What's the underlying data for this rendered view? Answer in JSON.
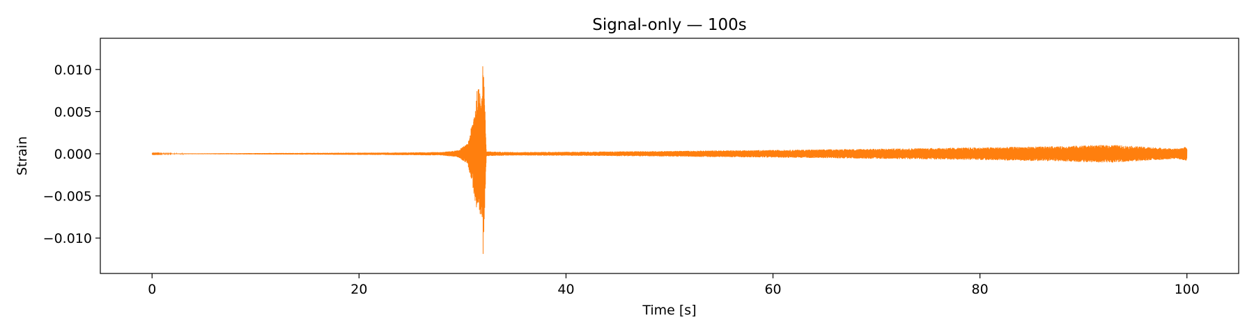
{
  "chart_data": {
    "type": "line",
    "title": "Signal-only — 100s",
    "xlabel": "Time [s]",
    "ylabel": "Strain",
    "xlim": [
      -5,
      105
    ],
    "ylim": [
      -0.0142,
      0.0137
    ],
    "x_ticks": [
      0,
      20,
      40,
      60,
      80,
      100
    ],
    "x_tick_labels": [
      "0",
      "20",
      "40",
      "60",
      "80",
      "100"
    ],
    "y_ticks": [
      -0.01,
      -0.005,
      0.0,
      0.005,
      0.01
    ],
    "y_tick_labels": [
      "−0.010",
      "−0.005",
      "0.000",
      "0.005",
      "0.010"
    ],
    "grid": false,
    "legend": "none",
    "series": [
      {
        "color": "#ff7f0e",
        "envelope": {
          "t": [
            0,
            5,
            10,
            15,
            20,
            25,
            28,
            29.5,
            30.5,
            31.0,
            31.4,
            31.7,
            31.9,
            32.0,
            32.1,
            32.3,
            33,
            35,
            40,
            45,
            50,
            55,
            60,
            65,
            70,
            75,
            80,
            85,
            88,
            90,
            93,
            95,
            97,
            99,
            100
          ],
          "amp": [
            3e-05,
            5e-05,
            8e-05,
            0.0001,
            0.00013,
            0.00016,
            0.0002,
            0.0004,
            0.0012,
            0.004,
            0.0075,
            0.0082,
            0.008,
            0.0125,
            0.0082,
            0.0003,
            0.00025,
            0.0002,
            0.00023,
            0.00028,
            0.00033,
            0.0004,
            0.00045,
            0.00052,
            0.0006,
            0.00068,
            0.00075,
            0.00085,
            0.0009,
            0.001,
            0.00105,
            0.0009,
            0.00075,
            0.0006,
            0.00085
          ]
        }
      }
    ]
  }
}
